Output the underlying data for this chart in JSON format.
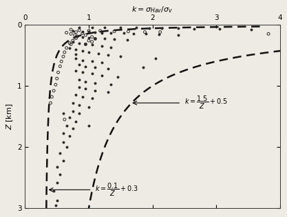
{
  "xlabel": "$k = \\sigma_{Hav} / \\sigma_v$",
  "ylabel": "$Z$ [km]",
  "xlim": [
    0,
    4
  ],
  "ylim": [
    3,
    0
  ],
  "xticks": [
    0,
    1,
    2,
    3,
    4
  ],
  "yticks": [
    0,
    1,
    2,
    3
  ],
  "filled_dots": [
    [
      0.85,
      0.04
    ],
    [
      1.05,
      0.04
    ],
    [
      1.25,
      0.05
    ],
    [
      1.5,
      0.05
    ],
    [
      1.75,
      0.05
    ],
    [
      1.95,
      0.06
    ],
    [
      2.15,
      0.06
    ],
    [
      2.4,
      0.06
    ],
    [
      2.65,
      0.07
    ],
    [
      3.05,
      0.07
    ],
    [
      3.55,
      0.08
    ],
    [
      0.75,
      0.1
    ],
    [
      0.9,
      0.11
    ],
    [
      1.0,
      0.11
    ],
    [
      1.1,
      0.12
    ],
    [
      1.2,
      0.13
    ],
    [
      1.35,
      0.13
    ],
    [
      1.55,
      0.14
    ],
    [
      1.7,
      0.15
    ],
    [
      1.9,
      0.15
    ],
    [
      2.1,
      0.16
    ],
    [
      2.4,
      0.17
    ],
    [
      0.8,
      0.19
    ],
    [
      0.9,
      0.2
    ],
    [
      1.0,
      0.21
    ],
    [
      1.1,
      0.22
    ],
    [
      1.25,
      0.23
    ],
    [
      1.4,
      0.24
    ],
    [
      1.6,
      0.25
    ],
    [
      0.75,
      0.28
    ],
    [
      0.85,
      0.3
    ],
    [
      0.95,
      0.31
    ],
    [
      1.05,
      0.33
    ],
    [
      1.2,
      0.35
    ],
    [
      1.35,
      0.37
    ],
    [
      0.8,
      0.4
    ],
    [
      0.9,
      0.43
    ],
    [
      1.0,
      0.45
    ],
    [
      1.15,
      0.47
    ],
    [
      1.3,
      0.5
    ],
    [
      1.5,
      0.52
    ],
    [
      0.8,
      0.55
    ],
    [
      0.9,
      0.58
    ],
    [
      1.05,
      0.6
    ],
    [
      1.2,
      0.62
    ],
    [
      0.85,
      0.65
    ],
    [
      0.95,
      0.68
    ],
    [
      1.1,
      0.7
    ],
    [
      1.3,
      0.72
    ],
    [
      0.8,
      0.75
    ],
    [
      0.9,
      0.78
    ],
    [
      1.05,
      0.8
    ],
    [
      1.2,
      0.83
    ],
    [
      1.45,
      0.85
    ],
    [
      0.85,
      0.9
    ],
    [
      0.95,
      0.93
    ],
    [
      1.1,
      0.95
    ],
    [
      1.35,
      0.98
    ],
    [
      0.85,
      1.02
    ],
    [
      0.95,
      1.05
    ],
    [
      1.1,
      1.08
    ],
    [
      1.3,
      1.1
    ],
    [
      1.85,
      0.7
    ],
    [
      2.05,
      0.55
    ],
    [
      0.8,
      0.48
    ],
    [
      0.7,
      0.38
    ],
    [
      0.8,
      1.15
    ],
    [
      0.9,
      1.18
    ],
    [
      1.05,
      1.2
    ],
    [
      0.75,
      1.28
    ],
    [
      0.85,
      1.32
    ],
    [
      1.0,
      1.35
    ],
    [
      0.75,
      1.42
    ],
    [
      0.85,
      1.45
    ],
    [
      0.7,
      1.52
    ],
    [
      0.8,
      1.58
    ],
    [
      0.65,
      1.65
    ],
    [
      0.75,
      1.7
    ],
    [
      0.6,
      1.78
    ],
    [
      0.7,
      1.82
    ],
    [
      0.6,
      1.92
    ],
    [
      0.65,
      2.0
    ],
    [
      0.55,
      2.1
    ],
    [
      0.6,
      2.22
    ],
    [
      0.5,
      2.32
    ],
    [
      0.55,
      2.45
    ],
    [
      0.5,
      2.58
    ],
    [
      0.45,
      2.72
    ],
    [
      0.5,
      2.88
    ],
    [
      0.48,
      2.95
    ],
    [
      0.55,
      3.05
    ],
    [
      0.45,
      3.15
    ],
    [
      0.6,
      1.45
    ],
    [
      1.0,
      1.65
    ]
  ],
  "open_dots": [
    [
      0.72,
      0.08
    ],
    [
      0.85,
      0.09
    ],
    [
      1.0,
      0.1
    ],
    [
      1.18,
      0.1
    ],
    [
      1.4,
      0.11
    ],
    [
      1.62,
      0.11
    ],
    [
      1.88,
      0.12
    ],
    [
      2.12,
      0.12
    ],
    [
      3.82,
      0.15
    ],
    [
      0.65,
      0.13
    ],
    [
      0.72,
      0.15
    ],
    [
      0.78,
      0.17
    ],
    [
      0.82,
      0.19
    ],
    [
      0.8,
      0.22
    ],
    [
      0.75,
      0.26
    ],
    [
      0.7,
      0.3
    ],
    [
      0.72,
      0.32
    ],
    [
      0.8,
      0.12
    ],
    [
      0.9,
      0.14
    ],
    [
      0.95,
      0.17
    ],
    [
      1.05,
      0.2
    ],
    [
      1.1,
      0.23
    ],
    [
      1.05,
      0.28
    ],
    [
      0.95,
      0.32
    ],
    [
      1.0,
      0.26
    ],
    [
      0.65,
      0.38
    ],
    [
      0.62,
      0.45
    ],
    [
      0.6,
      0.52
    ],
    [
      0.57,
      0.6
    ],
    [
      0.55,
      0.68
    ],
    [
      0.52,
      0.78
    ],
    [
      0.5,
      0.88
    ],
    [
      0.48,
      0.98
    ],
    [
      0.45,
      1.08
    ],
    [
      0.42,
      1.18
    ],
    [
      0.4,
      1.28
    ],
    [
      0.62,
      1.55
    ]
  ],
  "background_color": "#eeeae4",
  "dot_color_filled": "#2a2a2a",
  "dot_color_open": "#2a2a2a",
  "curve_color": "#111111",
  "curve_lw": 1.8,
  "dot_size_filled": 8,
  "dot_size_open": 8
}
